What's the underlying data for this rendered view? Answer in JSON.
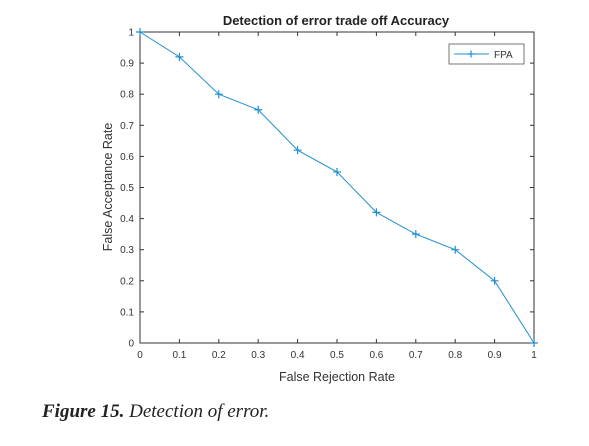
{
  "chart_data": {
    "type": "line",
    "title": "Detection of error trade off Accuracy",
    "xlabel": "False Rejection Rate",
    "ylabel": "False Acceptance Rate",
    "xlim": [
      0,
      1
    ],
    "ylim": [
      0,
      1
    ],
    "xticks": [
      "0",
      "0.1",
      "0.2",
      "0.3",
      "0.4",
      "0.5",
      "0.6",
      "0.7",
      "0.8",
      "0.9",
      "1"
    ],
    "yticks": [
      "0",
      "0.1",
      "0.2",
      "0.3",
      "0.4",
      "0.5",
      "0.6",
      "0.7",
      "0.8",
      "0.9",
      "1"
    ],
    "grid": false,
    "legend_position": "top-right",
    "series": [
      {
        "name": "FPA",
        "color": "#1f8fd0",
        "marker": "plus",
        "x": [
          0,
          0.1,
          0.2,
          0.3,
          0.4,
          0.5,
          0.6,
          0.7,
          0.8,
          0.9,
          1
        ],
        "y": [
          1,
          0.92,
          0.8,
          0.75,
          0.62,
          0.55,
          0.42,
          0.35,
          0.3,
          0.2,
          0
        ]
      }
    ]
  },
  "caption": {
    "figure_label": "Figure 15.",
    "text": " Detection of error."
  }
}
